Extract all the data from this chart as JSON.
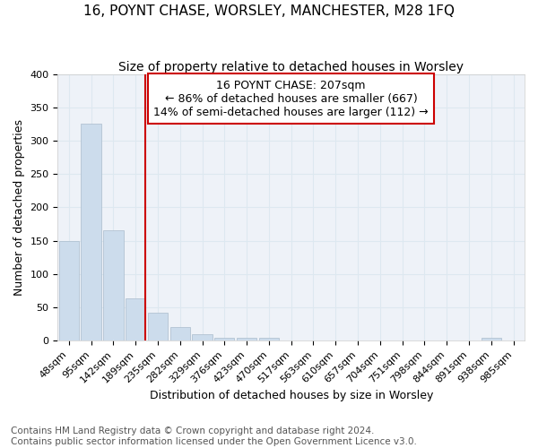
{
  "title": "16, POYNT CHASE, WORSLEY, MANCHESTER, M28 1FQ",
  "subtitle": "Size of property relative to detached houses in Worsley",
  "xlabel": "Distribution of detached houses by size in Worsley",
  "ylabel": "Number of detached properties",
  "footer_line1": "Contains HM Land Registry data © Crown copyright and database right 2024.",
  "footer_line2": "Contains public sector information licensed under the Open Government Licence v3.0.",
  "bar_labels": [
    "48sqm",
    "95sqm",
    "142sqm",
    "189sqm",
    "235sqm",
    "282sqm",
    "329sqm",
    "376sqm",
    "423sqm",
    "470sqm",
    "517sqm",
    "563sqm",
    "610sqm",
    "657sqm",
    "704sqm",
    "751sqm",
    "798sqm",
    "844sqm",
    "891sqm",
    "938sqm",
    "985sqm"
  ],
  "bar_heights": [
    150,
    325,
    165,
    63,
    42,
    20,
    10,
    5,
    4,
    5,
    0,
    0,
    0,
    0,
    0,
    0,
    0,
    0,
    0,
    4,
    0
  ],
  "bar_color": "#ccdcec",
  "bar_edge_color": "#aabccc",
  "red_line_x": 3.42,
  "annotation_text_line1": "16 POYNT CHASE: 207sqm",
  "annotation_text_line2": "← 86% of detached houses are smaller (667)",
  "annotation_text_line3": "14% of semi-detached houses are larger (112) →",
  "annotation_box_facecolor": "#ffffff",
  "annotation_box_edgecolor": "#cc0000",
  "red_line_color": "#cc0000",
  "ylim": [
    0,
    400
  ],
  "yticks": [
    0,
    50,
    100,
    150,
    200,
    250,
    300,
    350,
    400
  ],
  "grid_color": "#dde8f0",
  "plot_bg_color": "#eef2f8",
  "fig_bg_color": "#ffffff",
  "title_fontsize": 11,
  "subtitle_fontsize": 10,
  "xlabel_fontsize": 9,
  "ylabel_fontsize": 9,
  "tick_fontsize": 8,
  "footer_fontsize": 7.5,
  "annotation_fontsize": 9
}
